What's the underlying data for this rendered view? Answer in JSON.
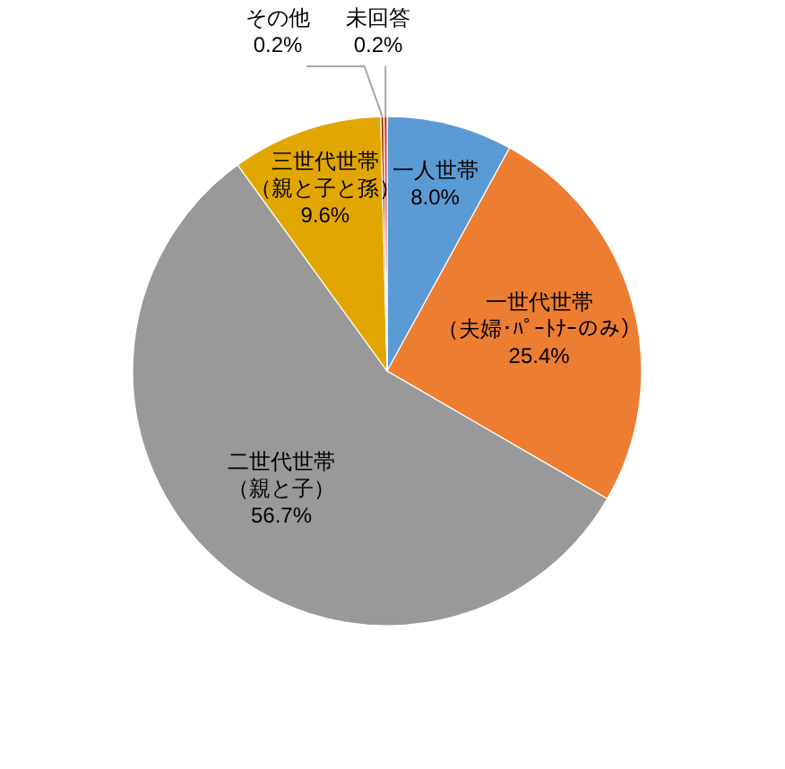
{
  "chart_data": {
    "type": "pie",
    "categories": [
      "一人世帯",
      "一世代世帯（夫婦･ﾊﾟｰﾄﾅｰのみ）",
      "二世代世帯（親と子）",
      "三世代世帯（親と子と孫）",
      "その他",
      "未回答"
    ],
    "values": [
      8.0,
      25.4,
      56.7,
      9.6,
      0.2,
      0.2
    ],
    "value_labels": [
      "8.0%",
      "25.4%",
      "56.7%",
      "9.6%",
      "0.2%",
      "0.2%"
    ],
    "colors": [
      "#5b9bd5",
      "#ed7d31",
      "#999999",
      "#e2a600",
      "#9e480e",
      "#e0301e"
    ]
  }
}
